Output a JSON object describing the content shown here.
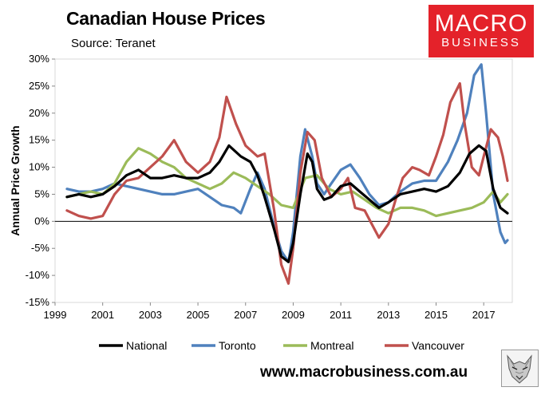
{
  "header": {
    "title": "Canadian House Prices",
    "subtitle": "Source: Teranet"
  },
  "logo": {
    "line1": "MACRO",
    "line2": "BUSINESS",
    "color": "#e4222a"
  },
  "footer": {
    "url": "www.macrobusiness.com.au"
  },
  "chart_data": {
    "type": "line",
    "title": "Canadian House Prices",
    "xlabel": "",
    "ylabel": "Annual Price Growth",
    "xlim": [
      1999,
      2018.2
    ],
    "ylim": [
      -15,
      30
    ],
    "x_ticks": [
      1999,
      2001,
      2003,
      2005,
      2007,
      2009,
      2011,
      2013,
      2015,
      2017
    ],
    "y_ticks": [
      -15,
      -10,
      -5,
      0,
      5,
      10,
      15,
      20,
      25,
      30
    ],
    "y_tick_labels": [
      "-15%",
      "-10%",
      "-5%",
      "0%",
      "5%",
      "10%",
      "15%",
      "20%",
      "25%",
      "30%"
    ],
    "legend_position": "bottom",
    "series": [
      {
        "name": "National",
        "color": "#000000",
        "x": [
          1999.5,
          2000.0,
          2000.5,
          2001.0,
          2001.5,
          2002.0,
          2002.5,
          2003.0,
          2003.5,
          2004.0,
          2004.5,
          2005.0,
          2005.5,
          2005.9,
          2006.3,
          2006.8,
          2007.2,
          2007.5,
          2007.8,
          2008.2,
          2008.5,
          2008.8,
          2009.0,
          2009.3,
          2009.6,
          2009.8,
          2010.0,
          2010.3,
          2010.6,
          2011.0,
          2011.4,
          2011.8,
          2012.2,
          2012.6,
          2013.0,
          2013.5,
          2014.0,
          2014.5,
          2015.0,
          2015.5,
          2016.0,
          2016.4,
          2016.8,
          2017.1,
          2017.4,
          2017.7,
          2018.0
        ],
        "values": [
          4.5,
          5.0,
          4.5,
          5.0,
          6.5,
          8.5,
          9.5,
          8.0,
          8.0,
          8.5,
          8.0,
          8.0,
          9.0,
          11.0,
          14.0,
          12.0,
          11.0,
          8.5,
          4.5,
          -1.5,
          -6.5,
          -7.5,
          -4.0,
          5.0,
          12.5,
          11.0,
          6.0,
          4.0,
          4.5,
          6.5,
          7.0,
          5.5,
          4.0,
          2.5,
          3.5,
          5.0,
          5.5,
          6.0,
          5.5,
          6.5,
          9.0,
          12.5,
          14.0,
          13.0,
          6.0,
          2.5,
          1.5
        ]
      },
      {
        "name": "Toronto",
        "color": "#4f81bd",
        "x": [
          1999.5,
          2000.0,
          2000.5,
          2001.0,
          2001.5,
          2002.0,
          2002.5,
          2003.0,
          2003.5,
          2004.0,
          2004.5,
          2005.0,
          2005.5,
          2006.0,
          2006.5,
          2006.8,
          2007.2,
          2007.5,
          2007.8,
          2008.2,
          2008.5,
          2008.8,
          2009.0,
          2009.3,
          2009.5,
          2009.8,
          2010.0,
          2010.3,
          2010.6,
          2011.0,
          2011.4,
          2011.8,
          2012.2,
          2012.6,
          2013.0,
          2013.5,
          2014.0,
          2014.5,
          2015.0,
          2015.5,
          2015.9,
          2016.3,
          2016.6,
          2016.9,
          2017.1,
          2017.4,
          2017.7,
          2017.9,
          2018.0
        ],
        "values": [
          6.0,
          5.5,
          5.5,
          6.0,
          7.0,
          6.5,
          6.0,
          5.5,
          5.0,
          5.0,
          5.5,
          6.0,
          4.5,
          3.0,
          2.5,
          1.5,
          6.0,
          9.0,
          6.0,
          -1.0,
          -5.5,
          -7.5,
          -2.0,
          12.0,
          17.0,
          12.0,
          7.0,
          5.0,
          7.0,
          9.5,
          10.5,
          8.0,
          5.0,
          3.0,
          3.5,
          5.5,
          7.0,
          7.5,
          7.5,
          11.0,
          15.0,
          20.0,
          27.0,
          29.0,
          20.0,
          5.0,
          -2.0,
          -4.0,
          -3.5
        ]
      },
      {
        "name": "Montreal",
        "color": "#9bbb59",
        "x": [
          1999.5,
          2000.0,
          2000.5,
          2001.0,
          2001.5,
          2002.0,
          2002.5,
          2003.0,
          2003.5,
          2004.0,
          2004.5,
          2005.0,
          2005.5,
          2006.0,
          2006.5,
          2007.0,
          2007.5,
          2008.0,
          2008.5,
          2009.0,
          2009.5,
          2010.0,
          2010.5,
          2011.0,
          2011.5,
          2012.0,
          2012.5,
          2013.0,
          2013.5,
          2014.0,
          2014.5,
          2015.0,
          2015.5,
          2016.0,
          2016.5,
          2017.0,
          2017.4,
          2017.7,
          2018.0
        ],
        "values": [
          4.5,
          5.0,
          5.5,
          5.0,
          7.0,
          11.0,
          13.5,
          12.5,
          11.0,
          10.0,
          8.0,
          7.0,
          6.0,
          7.0,
          9.0,
          8.0,
          6.5,
          5.0,
          3.0,
          2.5,
          8.0,
          8.5,
          6.0,
          5.0,
          5.5,
          4.0,
          2.5,
          1.5,
          2.5,
          2.5,
          2.0,
          1.0,
          1.5,
          2.0,
          2.5,
          3.5,
          5.5,
          3.5,
          5.0
        ]
      },
      {
        "name": "Vancouver",
        "color": "#c0504d",
        "x": [
          1999.5,
          2000.0,
          2000.5,
          2001.0,
          2001.5,
          2002.0,
          2002.5,
          2003.0,
          2003.5,
          2004.0,
          2004.5,
          2005.0,
          2005.5,
          2005.9,
          2006.2,
          2006.6,
          2007.0,
          2007.5,
          2007.8,
          2008.2,
          2008.5,
          2008.8,
          2009.0,
          2009.3,
          2009.6,
          2009.9,
          2010.2,
          2010.6,
          2011.0,
          2011.3,
          2011.6,
          2012.0,
          2012.3,
          2012.6,
          2013.0,
          2013.3,
          2013.6,
          2014.0,
          2014.3,
          2014.7,
          2015.0,
          2015.3,
          2015.6,
          2016.0,
          2016.2,
          2016.5,
          2016.8,
          2017.0,
          2017.3,
          2017.6,
          2017.8,
          2018.0
        ],
        "values": [
          2.0,
          1.0,
          0.5,
          1.0,
          5.0,
          7.5,
          8.0,
          10.0,
          12.0,
          15.0,
          11.0,
          9.0,
          11.0,
          15.5,
          23.0,
          18.0,
          14.0,
          12.0,
          12.5,
          2.0,
          -8.0,
          -11.5,
          -5.0,
          9.0,
          16.5,
          15.0,
          8.0,
          4.5,
          6.0,
          8.0,
          2.5,
          2.0,
          -0.5,
          -3.0,
          -0.5,
          4.0,
          8.0,
          10.0,
          9.5,
          8.5,
          12.0,
          16.0,
          22.0,
          25.5,
          18.0,
          10.0,
          8.5,
          12.0,
          17.0,
          15.5,
          12.0,
          7.5
        ]
      }
    ]
  }
}
